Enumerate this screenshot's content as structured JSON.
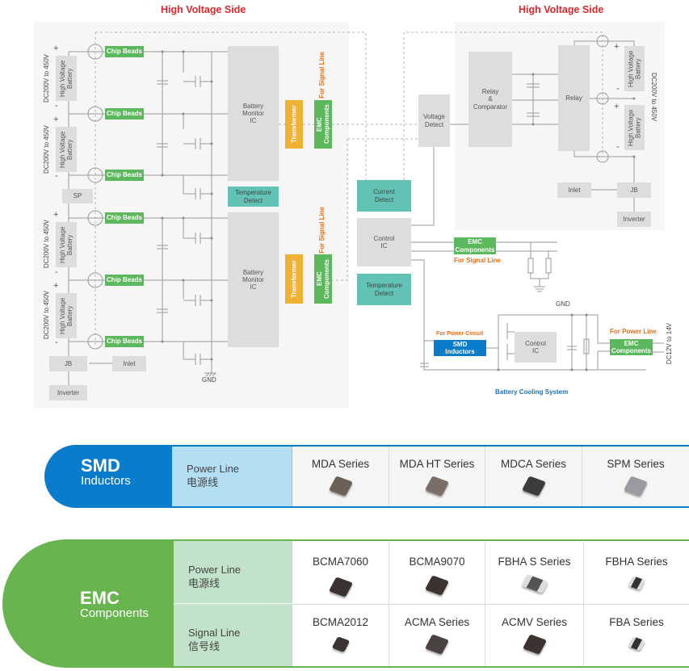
{
  "titles": {
    "left": "High Voltage Side",
    "right": "High Voltage Side"
  },
  "left": {
    "battery": "High Voltage\nBattery",
    "voltage": "DC200V to 450V",
    "plus": "+",
    "minus": "-",
    "chip_beads": "Chip Beads",
    "bmic": "Battery\nMonitor\nIC",
    "temp": "Temperature\nDetect",
    "transformer": "Transformer",
    "emc": "EMC\nComponents",
    "signal": "For Signal Line",
    "sp": "SP",
    "jb": "JB",
    "inlet": "Inlet",
    "inverter": "Inverter",
    "gnd": "GND"
  },
  "center": {
    "current": "Current\nDetect",
    "control": "Control\nIC",
    "temp": "Temperature\nDetect",
    "voltage_detect": "Voltage\nDetect",
    "emc": "EMC\nComponents",
    "signal": "For Signal Line",
    "gnd": "GND"
  },
  "right": {
    "relay_comp": "Relay\n&\nComparator",
    "relay": "Relay",
    "battery": "High Voltage\nBattery",
    "voltage": "DC200V to 450V",
    "inlet": "Inlet",
    "jb": "JB",
    "inverter": "Inverter"
  },
  "cooling": {
    "power_circuit": "For Power Circuit",
    "smd": "SMD\nInductors",
    "control": "Control\nIC",
    "power_line": "For Power Line",
    "emc": "EMC\nComponents",
    "voltage": "DC12V to 14V",
    "title": "Battery Cooling System"
  },
  "smd_table": {
    "title": "SMD",
    "subtitle": "Inductors",
    "category": "Power Line",
    "category_cn": "电源线",
    "products": [
      "MDA Series",
      "MDA HT Series",
      "MDCA Series",
      "SPM Series"
    ],
    "color": "#0a7ccc",
    "light": "#b3def3"
  },
  "emc_table": {
    "title": "EMC",
    "subtitle": "Components",
    "rows": [
      {
        "category": "Power Line",
        "category_cn": "电源线",
        "products": [
          "BCMA7060",
          "BCMA9070",
          "FBHA S Series",
          "FBHA Series"
        ]
      },
      {
        "category": "Signal Line",
        "category_cn": "信号线",
        "products": [
          "BCMA2012",
          "ACMA Series",
          "ACMV Series",
          "FBA Series"
        ]
      }
    ],
    "color": "#68b550",
    "light": "#c2e3c9"
  }
}
